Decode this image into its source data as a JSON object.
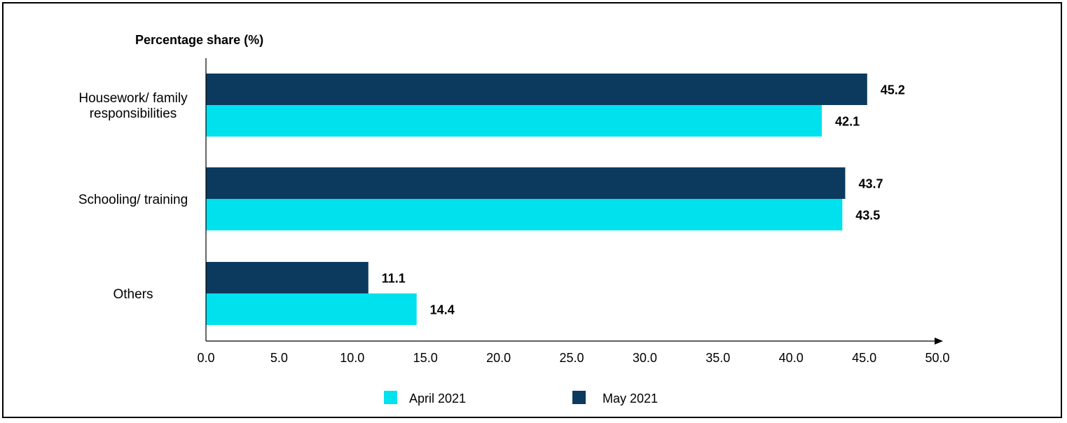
{
  "chart_data": {
    "type": "bar",
    "orientation": "horizontal",
    "ylabel": "Percentage share (%)",
    "categories": [
      [
        "Housework/ family",
        "responsibilities"
      ],
      [
        "Schooling/ training"
      ],
      [
        "Others"
      ]
    ],
    "series": [
      {
        "name": "May 2021",
        "color": "#0c3a5e",
        "values": [
          45.2,
          43.7,
          11.1
        ],
        "labels": [
          "45.2",
          "43.7",
          "11.1"
        ]
      },
      {
        "name": "April 2021",
        "color": "#00e1ee",
        "values": [
          42.1,
          43.5,
          14.4
        ],
        "labels": [
          "42.1",
          "43.5",
          "14.4"
        ]
      }
    ],
    "xlim": [
      0,
      50
    ],
    "xticks": [
      "0.0",
      "5.0",
      "10.0",
      "15.0",
      "20.0",
      "25.0",
      "30.0",
      "35.0",
      "40.0",
      "45.0",
      "50.0"
    ],
    "grid": false,
    "legend": {
      "placement": "bottom",
      "entries": [
        {
          "name": "April 2021",
          "color": "#00e1ee"
        },
        {
          "name": "May 2021",
          "color": "#0c3a5e"
        }
      ]
    }
  }
}
